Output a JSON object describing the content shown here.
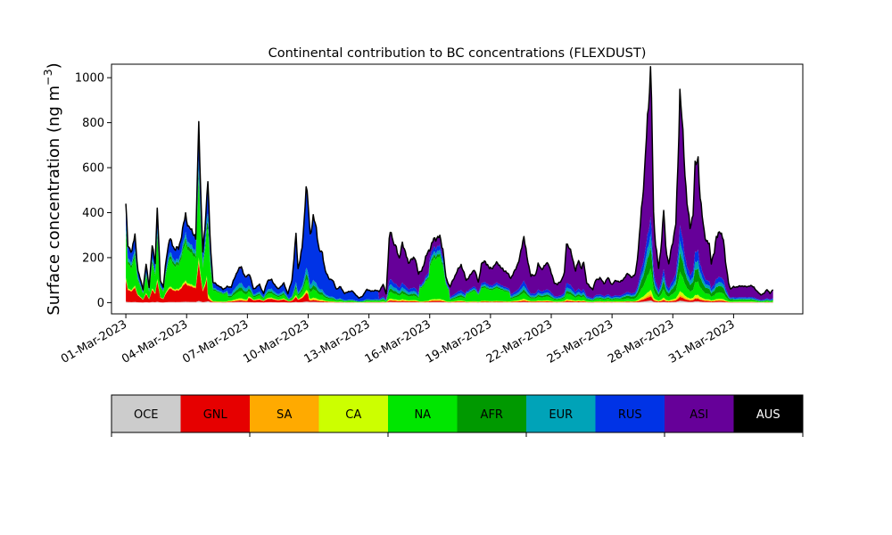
{
  "chart_data": {
    "type": "area",
    "stacked": true,
    "title": "Continental contribution to BC concentrations (FLEXDUST)",
    "ylabel": "Surface concentration (ng m",
    "ylabel_sup": "−3",
    "ylabel_close": ")",
    "xlabel": "",
    "ylim": [
      -50,
      1060
    ],
    "xlim": [
      "2023-02-28T07:00",
      "2023-04-03T10:00"
    ],
    "yticks": [
      0,
      200,
      400,
      600,
      800,
      1000
    ],
    "xticks": [
      "01-Mar-2023",
      "04-Mar-2023",
      "07-Mar-2023",
      "10-Mar-2023",
      "13-Mar-2023",
      "16-Mar-2023",
      "19-Mar-2023",
      "22-Mar-2023",
      "25-Mar-2023",
      "28-Mar-2023",
      "31-Mar-2023"
    ],
    "grid": false,
    "legend": "colorbar-below",
    "start": "2023-03-01T00:00",
    "end": "2023-04-01T23:00",
    "keypoints": [
      [
        0.0,
        440
      ],
      [
        0.1,
        250
      ],
      [
        0.3,
        230
      ],
      [
        0.45,
        300
      ],
      [
        0.6,
        140
      ],
      [
        0.85,
        60
      ],
      [
        1.0,
        170
      ],
      [
        1.15,
        70
      ],
      [
        1.3,
        250
      ],
      [
        1.45,
        180
      ],
      [
        1.55,
        425
      ],
      [
        1.7,
        100
      ],
      [
        1.85,
        70
      ],
      [
        2.0,
        200
      ],
      [
        2.15,
        285
      ],
      [
        2.4,
        240
      ],
      [
        2.6,
        240
      ],
      [
        2.8,
        320
      ],
      [
        2.95,
        395
      ],
      [
        3.1,
        330
      ],
      [
        3.3,
        320
      ],
      [
        3.45,
        280
      ],
      [
        3.55,
        620
      ],
      [
        3.6,
        840
      ],
      [
        3.68,
        520
      ],
      [
        3.8,
        220
      ],
      [
        3.95,
        400
      ],
      [
        4.05,
        540
      ],
      [
        4.15,
        300
      ],
      [
        4.3,
        90
      ],
      [
        4.5,
        80
      ],
      [
        4.8,
        60
      ],
      [
        5.0,
        70
      ],
      [
        5.2,
        70
      ],
      [
        5.5,
        140
      ],
      [
        5.7,
        160
      ],
      [
        5.9,
        110
      ],
      [
        6.1,
        130
      ],
      [
        6.3,
        60
      ],
      [
        6.6,
        80
      ],
      [
        6.8,
        40
      ],
      [
        7.0,
        100
      ],
      [
        7.2,
        100
      ],
      [
        7.5,
        60
      ],
      [
        7.8,
        85
      ],
      [
        8.0,
        40
      ],
      [
        8.2,
        100
      ],
      [
        8.4,
        300
      ],
      [
        8.5,
        150
      ],
      [
        8.7,
        240
      ],
      [
        8.8,
        360
      ],
      [
        8.9,
        530
      ],
      [
        9.0,
        430
      ],
      [
        9.1,
        300
      ],
      [
        9.25,
        380
      ],
      [
        9.4,
        330
      ],
      [
        9.55,
        230
      ],
      [
        9.7,
        220
      ],
      [
        9.85,
        140
      ],
      [
        10.0,
        110
      ],
      [
        10.2,
        100
      ],
      [
        10.4,
        60
      ],
      [
        10.6,
        70
      ],
      [
        10.8,
        40
      ],
      [
        11.0,
        50
      ],
      [
        11.2,
        50
      ],
      [
        11.5,
        20
      ],
      [
        11.7,
        30
      ],
      [
        11.9,
        60
      ],
      [
        12.1,
        50
      ],
      [
        12.3,
        55
      ],
      [
        12.5,
        50
      ],
      [
        12.7,
        80
      ],
      [
        12.85,
        40
      ],
      [
        13.0,
        280
      ],
      [
        13.1,
        320
      ],
      [
        13.2,
        270
      ],
      [
        13.35,
        240
      ],
      [
        13.5,
        200
      ],
      [
        13.65,
        260
      ],
      [
        13.8,
        230
      ],
      [
        13.95,
        170
      ],
      [
        14.1,
        200
      ],
      [
        14.3,
        190
      ],
      [
        14.45,
        130
      ],
      [
        14.6,
        140
      ],
      [
        14.8,
        200
      ],
      [
        15.0,
        240
      ],
      [
        15.2,
        280
      ],
      [
        15.35,
        290
      ],
      [
        15.5,
        290
      ],
      [
        15.65,
        240
      ],
      [
        15.8,
        110
      ],
      [
        16.0,
        70
      ],
      [
        16.15,
        100
      ],
      [
        16.3,
        130
      ],
      [
        16.55,
        170
      ],
      [
        16.8,
        100
      ],
      [
        17.0,
        120
      ],
      [
        17.2,
        150
      ],
      [
        17.4,
        90
      ],
      [
        17.55,
        170
      ],
      [
        17.75,
        185
      ],
      [
        17.95,
        150
      ],
      [
        18.15,
        160
      ],
      [
        18.35,
        180
      ],
      [
        18.55,
        150
      ],
      [
        18.75,
        140
      ],
      [
        19.0,
        110
      ],
      [
        19.2,
        140
      ],
      [
        19.45,
        200
      ],
      [
        19.65,
        300
      ],
      [
        19.8,
        200
      ],
      [
        20.0,
        120
      ],
      [
        20.2,
        120
      ],
      [
        20.35,
        170
      ],
      [
        20.5,
        150
      ],
      [
        20.65,
        160
      ],
      [
        20.85,
        180
      ],
      [
        21.0,
        130
      ],
      [
        21.15,
        90
      ],
      [
        21.3,
        80
      ],
      [
        21.5,
        100
      ],
      [
        21.65,
        130
      ],
      [
        21.75,
        270
      ],
      [
        21.9,
        240
      ],
      [
        22.05,
        200
      ],
      [
        22.2,
        140
      ],
      [
        22.35,
        190
      ],
      [
        22.5,
        150
      ],
      [
        22.6,
        180
      ],
      [
        22.75,
        90
      ],
      [
        22.9,
        70
      ],
      [
        23.05,
        60
      ],
      [
        23.2,
        100
      ],
      [
        23.4,
        110
      ],
      [
        23.6,
        85
      ],
      [
        23.8,
        110
      ],
      [
        24.0,
        80
      ],
      [
        24.2,
        100
      ],
      [
        24.4,
        90
      ],
      [
        24.6,
        110
      ],
      [
        24.8,
        130
      ],
      [
        25.0,
        110
      ],
      [
        25.15,
        130
      ],
      [
        25.3,
        230
      ],
      [
        25.45,
        420
      ],
      [
        25.6,
        560
      ],
      [
        25.75,
        830
      ],
      [
        25.85,
        960
      ],
      [
        25.9,
        1010
      ],
      [
        25.95,
        900
      ],
      [
        26.05,
        400
      ],
      [
        26.15,
        260
      ],
      [
        26.3,
        150
      ],
      [
        26.45,
        280
      ],
      [
        26.55,
        410
      ],
      [
        26.65,
        250
      ],
      [
        26.8,
        170
      ],
      [
        26.95,
        250
      ],
      [
        27.05,
        300
      ],
      [
        27.15,
        350
      ],
      [
        27.25,
        600
      ],
      [
        27.35,
        950
      ],
      [
        27.45,
        820
      ],
      [
        27.55,
        650
      ],
      [
        27.7,
        450
      ],
      [
        27.85,
        330
      ],
      [
        28.0,
        400
      ],
      [
        28.1,
        600
      ],
      [
        28.25,
        650
      ],
      [
        28.35,
        460
      ],
      [
        28.5,
        350
      ],
      [
        28.65,
        270
      ],
      [
        28.8,
        260
      ],
      [
        28.9,
        180
      ],
      [
        29.05,
        220
      ],
      [
        29.15,
        300
      ],
      [
        29.3,
        310
      ],
      [
        29.5,
        290
      ],
      [
        29.6,
        180
      ],
      [
        29.75,
        90
      ],
      [
        29.85,
        60
      ],
      [
        30.0,
        70
      ],
      [
        30.2,
        70
      ],
      [
        30.4,
        75
      ],
      [
        30.6,
        70
      ],
      [
        30.8,
        75
      ],
      [
        31.0,
        70
      ],
      [
        31.15,
        50
      ],
      [
        31.35,
        35
      ],
      [
        31.5,
        40
      ],
      [
        31.65,
        60
      ],
      [
        31.8,
        40
      ],
      [
        31.95,
        60
      ]
    ],
    "shares": [
      {
        "name": "OCE",
        "value": 0.01
      },
      {
        "name": "GNL",
        "value": 0.08
      },
      {
        "name": "SA",
        "value": 0.01
      },
      {
        "name": "CA",
        "value": 0.02
      },
      {
        "name": "NA",
        "value": 0.25
      },
      {
        "name": "AFR",
        "value": 0.06
      },
      {
        "name": "EUR",
        "value": 0.06
      },
      {
        "name": "RUS",
        "value": 0.2
      },
      {
        "name": "ASI",
        "value": 0.31
      }
    ]
  },
  "colorbar": {
    "items": [
      {
        "label": "OCE",
        "color": "#cccccc",
        "text_color": "#000000"
      },
      {
        "label": "GNL",
        "color": "#e60000",
        "text_color": "#000000"
      },
      {
        "label": "SA",
        "color": "#ffaa00",
        "text_color": "#000000"
      },
      {
        "label": "CA",
        "color": "#ccff00",
        "text_color": "#000000"
      },
      {
        "label": "NA",
        "color": "#00e600",
        "text_color": "#000000"
      },
      {
        "label": "AFR",
        "color": "#009900",
        "text_color": "#000000"
      },
      {
        "label": "EUR",
        "color": "#00a3b8",
        "text_color": "#000000"
      },
      {
        "label": "RUS",
        "color": "#0033e6",
        "text_color": "#000000"
      },
      {
        "label": "ASI",
        "color": "#660099",
        "text_color": "#000000"
      },
      {
        "label": "AUS",
        "color": "#000000",
        "text_color": "#ffffff"
      }
    ]
  }
}
